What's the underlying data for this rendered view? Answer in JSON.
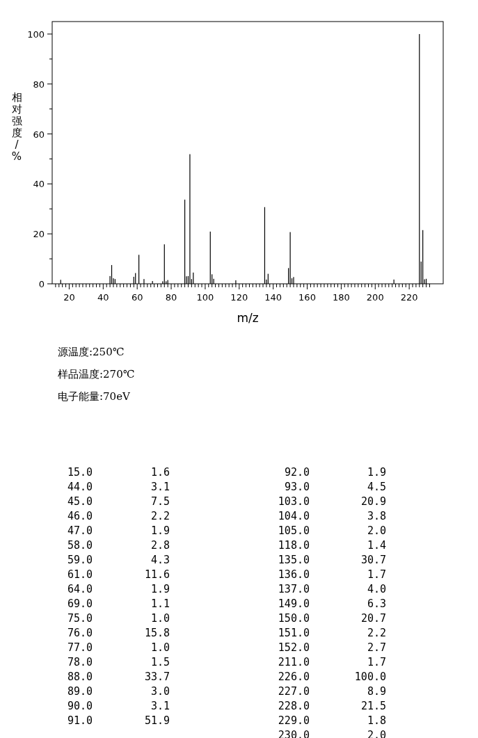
{
  "chart_data": [
    {
      "type": "bar",
      "xlabel": "m/z",
      "ylabel": "相对强度/%",
      "annotations": [
        "源温度:250℃",
        "样品温度:270℃",
        "电子能量:70eV"
      ],
      "x": [
        15,
        44,
        45,
        46,
        47,
        58,
        59,
        61,
        64,
        69,
        75,
        76,
        77,
        78,
        88,
        89,
        90,
        91,
        92,
        93,
        103,
        104,
        105,
        118,
        135,
        136,
        137,
        149,
        150,
        151,
        152,
        211,
        226,
        227,
        228,
        229,
        230
      ],
      "values": [
        1.6,
        3.1,
        7.5,
        2.2,
        1.9,
        2.8,
        4.3,
        11.6,
        1.9,
        1.1,
        1.0,
        15.8,
        1.0,
        1.5,
        33.7,
        3.0,
        3.1,
        51.9,
        1.9,
        4.5,
        20.9,
        3.8,
        2.0,
        1.4,
        30.7,
        1.7,
        4.0,
        6.3,
        20.7,
        2.2,
        2.7,
        1.7,
        100.0,
        8.9,
        21.5,
        1.8,
        2.0
      ],
      "color": "#000000",
      "grid": false,
      "xlim": [
        10,
        240
      ],
      "ylim": [
        0,
        105
      ],
      "yticks": [
        0,
        {
          "value": 10,
          "label": null
        },
        20,
        {
          "value": 30,
          "label": null
        },
        40,
        {
          "value": 50,
          "label": null
        },
        60,
        {
          "value": 70,
          "label": null
        },
        80,
        {
          "value": 90,
          "label": null
        },
        100
      ],
      "xticks": [
        {
          "value": 12,
          "label": null
        },
        {
          "value": 14,
          "label": null
        },
        {
          "value": 16,
          "label": null
        },
        {
          "value": 18,
          "label": null
        },
        20,
        {
          "value": 22,
          "label": null
        },
        {
          "value": 24,
          "label": null
        },
        {
          "value": 26,
          "label": null
        },
        {
          "value": 28,
          "label": null
        },
        {
          "value": 30,
          "label": null
        },
        {
          "value": 32,
          "label": null
        },
        {
          "value": 34,
          "label": null
        },
        {
          "value": 36,
          "label": null
        },
        {
          "value": 38,
          "label": null
        },
        40,
        {
          "value": 42,
          "label": null
        },
        {
          "value": 44,
          "label": null
        },
        {
          "value": 46,
          "label": null
        },
        {
          "value": 48,
          "label": null
        },
        {
          "value": 50,
          "label": null
        },
        {
          "value": 52,
          "label": null
        },
        {
          "value": 54,
          "label": null
        },
        {
          "value": 56,
          "label": null
        },
        {
          "value": 58,
          "label": null
        },
        60,
        {
          "value": 62,
          "label": null
        },
        {
          "value": 64,
          "label": null
        },
        {
          "value": 66,
          "label": null
        },
        {
          "value": 68,
          "label": null
        },
        {
          "value": 70,
          "label": null
        },
        {
          "value": 72,
          "label": null
        },
        {
          "value": 74,
          "label": null
        },
        {
          "value": 76,
          "label": null
        },
        {
          "value": 78,
          "label": null
        },
        80,
        {
          "value": 82,
          "label": null
        },
        {
          "value": 84,
          "label": null
        },
        {
          "value": 86,
          "label": null
        },
        {
          "value": 88,
          "label": null
        },
        {
          "value": 90,
          "label": null
        },
        {
          "value": 92,
          "label": null
        },
        {
          "value": 94,
          "label": null
        },
        {
          "value": 96,
          "label": null
        },
        {
          "value": 98,
          "label": null
        },
        100,
        {
          "value": 102,
          "label": null
        },
        {
          "value": 104,
          "label": null
        },
        {
          "value": 106,
          "label": null
        },
        {
          "value": 108,
          "label": null
        },
        {
          "value": 110,
          "label": null
        },
        {
          "value": 112,
          "label": null
        },
        {
          "value": 114,
          "label": null
        },
        {
          "value": 116,
          "label": null
        },
        {
          "value": 118,
          "label": null
        },
        120,
        {
          "value": 122,
          "label": null
        },
        {
          "value": 124,
          "label": null
        },
        {
          "value": 126,
          "label": null
        },
        {
          "value": 128,
          "label": null
        },
        {
          "value": 130,
          "label": null
        },
        {
          "value": 132,
          "label": null
        },
        {
          "value": 134,
          "label": null
        },
        {
          "value": 136,
          "label": null
        },
        {
          "value": 138,
          "label": null
        },
        140,
        {
          "value": 142,
          "label": null
        },
        {
          "value": 144,
          "label": null
        },
        {
          "value": 146,
          "label": null
        },
        {
          "value": 148,
          "label": null
        },
        {
          "value": 150,
          "label": null
        },
        {
          "value": 152,
          "label": null
        },
        {
          "value": 154,
          "label": null
        },
        {
          "value": 156,
          "label": null
        },
        {
          "value": 158,
          "label": null
        },
        160,
        {
          "value": 162,
          "label": null
        },
        {
          "value": 164,
          "label": null
        },
        {
          "value": 166,
          "label": null
        },
        {
          "value": 168,
          "label": null
        },
        {
          "value": 170,
          "label": null
        },
        {
          "value": 172,
          "label": null
        },
        {
          "value": 174,
          "label": null
        },
        {
          "value": 176,
          "label": null
        },
        {
          "value": 178,
          "label": null
        },
        180,
        {
          "value": 182,
          "label": null
        },
        {
          "value": 184,
          "label": null
        },
        {
          "value": 186,
          "label": null
        },
        {
          "value": 188,
          "label": null
        },
        {
          "value": 190,
          "label": null
        },
        {
          "value": 192,
          "label": null
        },
        {
          "value": 194,
          "label": null
        },
        {
          "value": 196,
          "label": null
        },
        {
          "value": 198,
          "label": null
        },
        200,
        {
          "value": 202,
          "label": null
        },
        {
          "value": 204,
          "label": null
        },
        {
          "value": 206,
          "label": null
        },
        {
          "value": 208,
          "label": null
        },
        {
          "value": 210,
          "label": null
        },
        {
          "value": 212,
          "label": null
        },
        {
          "value": 214,
          "label": null
        },
        {
          "value": 216,
          "label": null
        },
        {
          "value": 218,
          "label": null
        },
        220,
        {
          "value": 222,
          "label": null
        },
        {
          "value": 224,
          "label": null
        },
        {
          "value": 226,
          "label": null
        },
        {
          "value": 228,
          "label": null
        },
        {
          "value": 230,
          "label": null
        },
        {
          "value": 232,
          "label": null
        }
      ]
    },
    {
      "type": "other",
      "annotations": [
        "15.0",
        "1.6",
        "44.0",
        "3.1",
        "45.0",
        "7.5",
        "46.0",
        "2.2",
        "47.0",
        "1.9",
        "58.0",
        "2.8",
        "59.0",
        "4.3",
        "61.0",
        "11.6",
        "64.0",
        "1.9",
        "69.0",
        "1.1",
        "75.0",
        "1.0",
        "76.0",
        "15.8",
        "77.0",
        "1.0",
        "78.0",
        "1.5",
        "88.0",
        "33.7",
        "89.0",
        "3.0",
        "90.0",
        "3.1",
        "91.0",
        "51.9",
        "92.0",
        "1.9",
        "93.0",
        "4.5",
        "103.0",
        "20.9",
        "104.0",
        "3.8",
        "105.0",
        "2.0",
        "118.0",
        "1.4",
        "135.0",
        "30.7",
        "136.0",
        "1.7",
        "137.0",
        "4.0",
        "149.0",
        "6.3",
        "150.0",
        "20.7",
        "151.0",
        "2.2",
        "152.0",
        "2.7",
        "211.0",
        "1.7",
        "226.0",
        "100.0",
        "227.0",
        "8.9",
        "228.0",
        "21.5",
        "229.0",
        "1.8",
        "230.0",
        "2.0"
      ]
    }
  ]
}
